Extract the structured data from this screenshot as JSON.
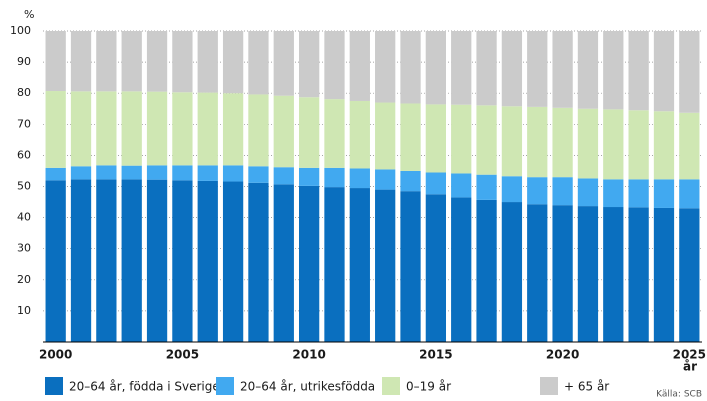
{
  "chart_data": {
    "type": "stacked_bar",
    "y_label": "%",
    "x_unit": "år",
    "source": "Källa: SCB",
    "categories": [
      "2000",
      null,
      null,
      null,
      null,
      "2005",
      null,
      null,
      null,
      null,
      "2010",
      null,
      null,
      null,
      null,
      "2015",
      null,
      null,
      null,
      null,
      "2020",
      null,
      null,
      null,
      null,
      "2025"
    ],
    "series": [
      {
        "name": "20–64 år, födda i Sverige",
        "color": "#0a6fbf",
        "values": [
          52,
          52.3,
          52.3,
          52.3,
          52.2,
          52,
          51.8,
          51.6,
          51.2,
          50.7,
          50.2,
          49.8,
          49.5,
          49,
          48.5,
          47.5,
          46.5,
          45.7,
          45,
          44.3,
          44,
          43.7,
          43.4,
          43.3,
          43.1,
          43
        ]
      },
      {
        "name": "20–64 år, utrikesfödda",
        "color": "#41a9f0",
        "values": [
          4,
          4.2,
          4.5,
          4.4,
          4.6,
          4.8,
          5,
          5.2,
          5.3,
          5.5,
          5.8,
          6.2,
          6.3,
          6.5,
          6.5,
          7,
          7.7,
          8.1,
          8.3,
          8.7,
          9,
          8.9,
          8.9,
          9,
          9.2,
          9.3
        ]
      },
      {
        "name": "0–19 år",
        "color": "#cfe7b3",
        "values": [
          24.7,
          24.1,
          23.8,
          23.9,
          23.7,
          23.5,
          23.4,
          23.2,
          23.1,
          23,
          22.7,
          22.1,
          21.7,
          21.5,
          21.7,
          21.9,
          22.1,
          22.3,
          22.5,
          22.6,
          22.3,
          22.4,
          22.5,
          22.2,
          21.9,
          21.4
        ]
      },
      {
        "name": "+ 65 år",
        "color": "#cbcbcb",
        "values": [
          19.3,
          19.4,
          19.4,
          19.4,
          19.5,
          19.7,
          19.8,
          20,
          20.4,
          20.8,
          21.3,
          21.9,
          22.5,
          23,
          23.3,
          23.6,
          23.7,
          23.9,
          24.2,
          24.4,
          24.7,
          25,
          25.2,
          25.5,
          25.8,
          26.3
        ]
      }
    ],
    "ylim": [
      0,
      100
    ],
    "yticks": [
      10,
      20,
      30,
      40,
      50,
      60,
      70,
      80,
      90,
      100
    ],
    "grid": true
  }
}
